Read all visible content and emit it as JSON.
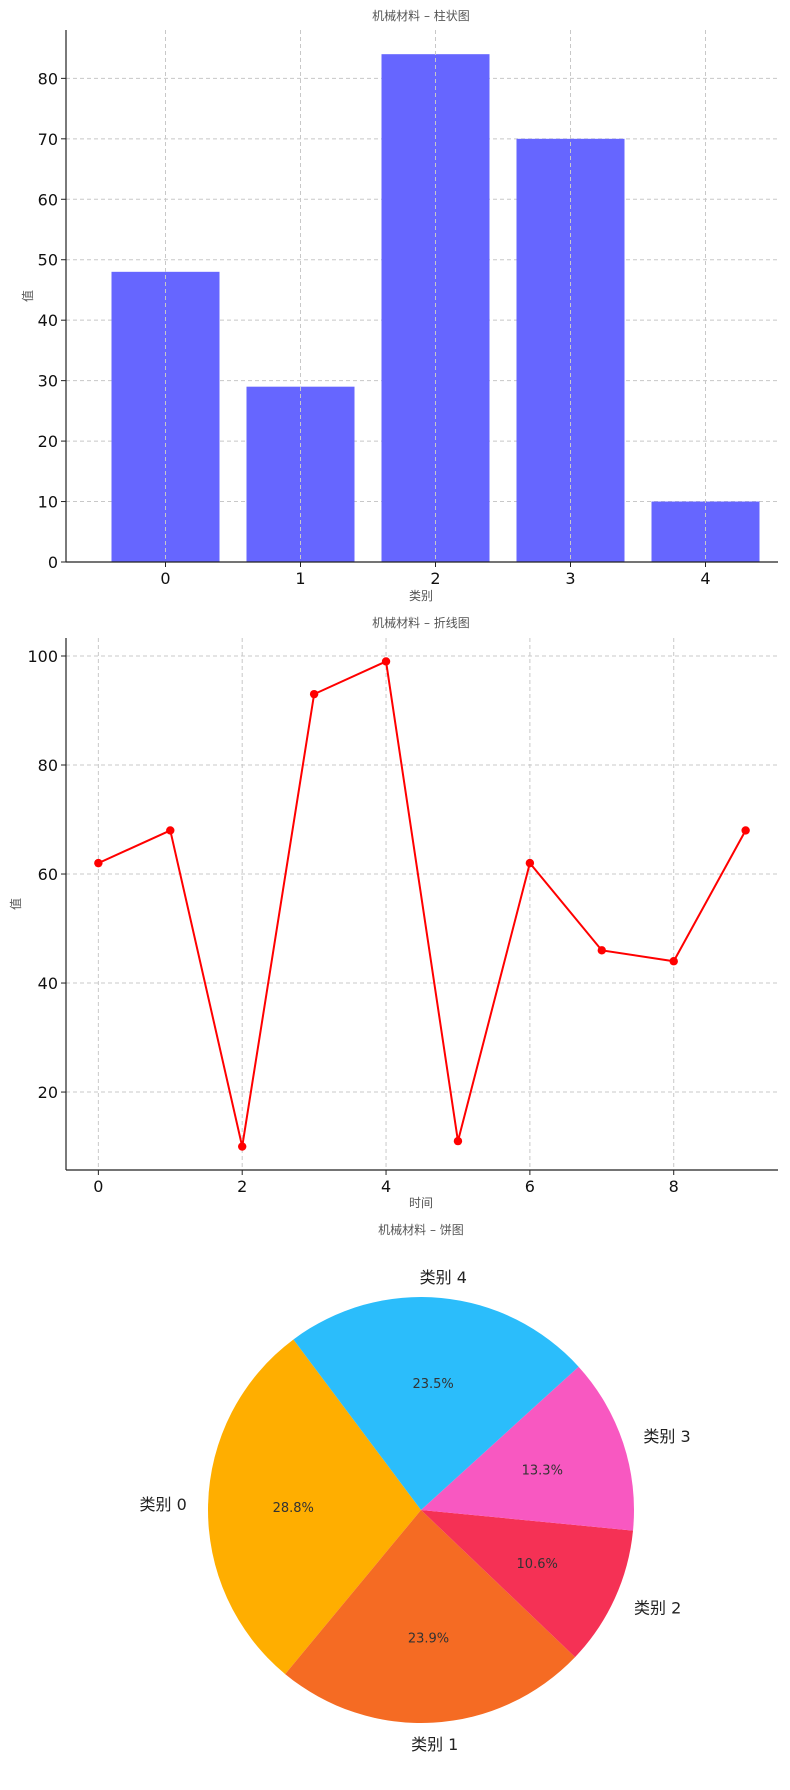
{
  "chart_data": [
    {
      "type": "bar",
      "title": "机械材料 – 柱状图",
      "xlabel": "类别",
      "ylabel": "值",
      "categories": [
        "0",
        "1",
        "2",
        "3",
        "4"
      ],
      "values": [
        48,
        29,
        84,
        70,
        10
      ],
      "ylim": [
        0,
        88
      ],
      "yticks": [
        0,
        10,
        20,
        30,
        40,
        50,
        60,
        70,
        80
      ],
      "grid": true,
      "color": "#6666ff"
    },
    {
      "type": "line",
      "title": "机械材料 – 折线图",
      "xlabel": "时间",
      "ylabel": "值",
      "x": [
        0,
        1,
        2,
        3,
        4,
        5,
        6,
        7,
        8,
        9
      ],
      "y": [
        62,
        68,
        10,
        93,
        99,
        11,
        62,
        46,
        44,
        68
      ],
      "xlim": [
        -0.45,
        9.45
      ],
      "ylim": [
        5.7,
        103.3
      ],
      "xticks": [
        0,
        2,
        4,
        6,
        8
      ],
      "yticks": [
        20,
        40,
        60,
        80,
        100
      ],
      "grid": true,
      "color": "#ff0000"
    },
    {
      "type": "pie",
      "title": "机械材料 – 饼图",
      "labels": [
        "类别 0",
        "类别 1",
        "类别 2",
        "类别 3",
        "类别 4"
      ],
      "values": [
        28.8,
        23.9,
        10.6,
        13.3,
        23.5
      ],
      "percent_labels": [
        "28.8%",
        "23.9%",
        "10.6%",
        "13.3%",
        "23.5%"
      ],
      "colors": [
        "#ffae00",
        "#f56b23",
        "#f53155",
        "#f858c1",
        "#2bbdfb"
      ]
    }
  ]
}
